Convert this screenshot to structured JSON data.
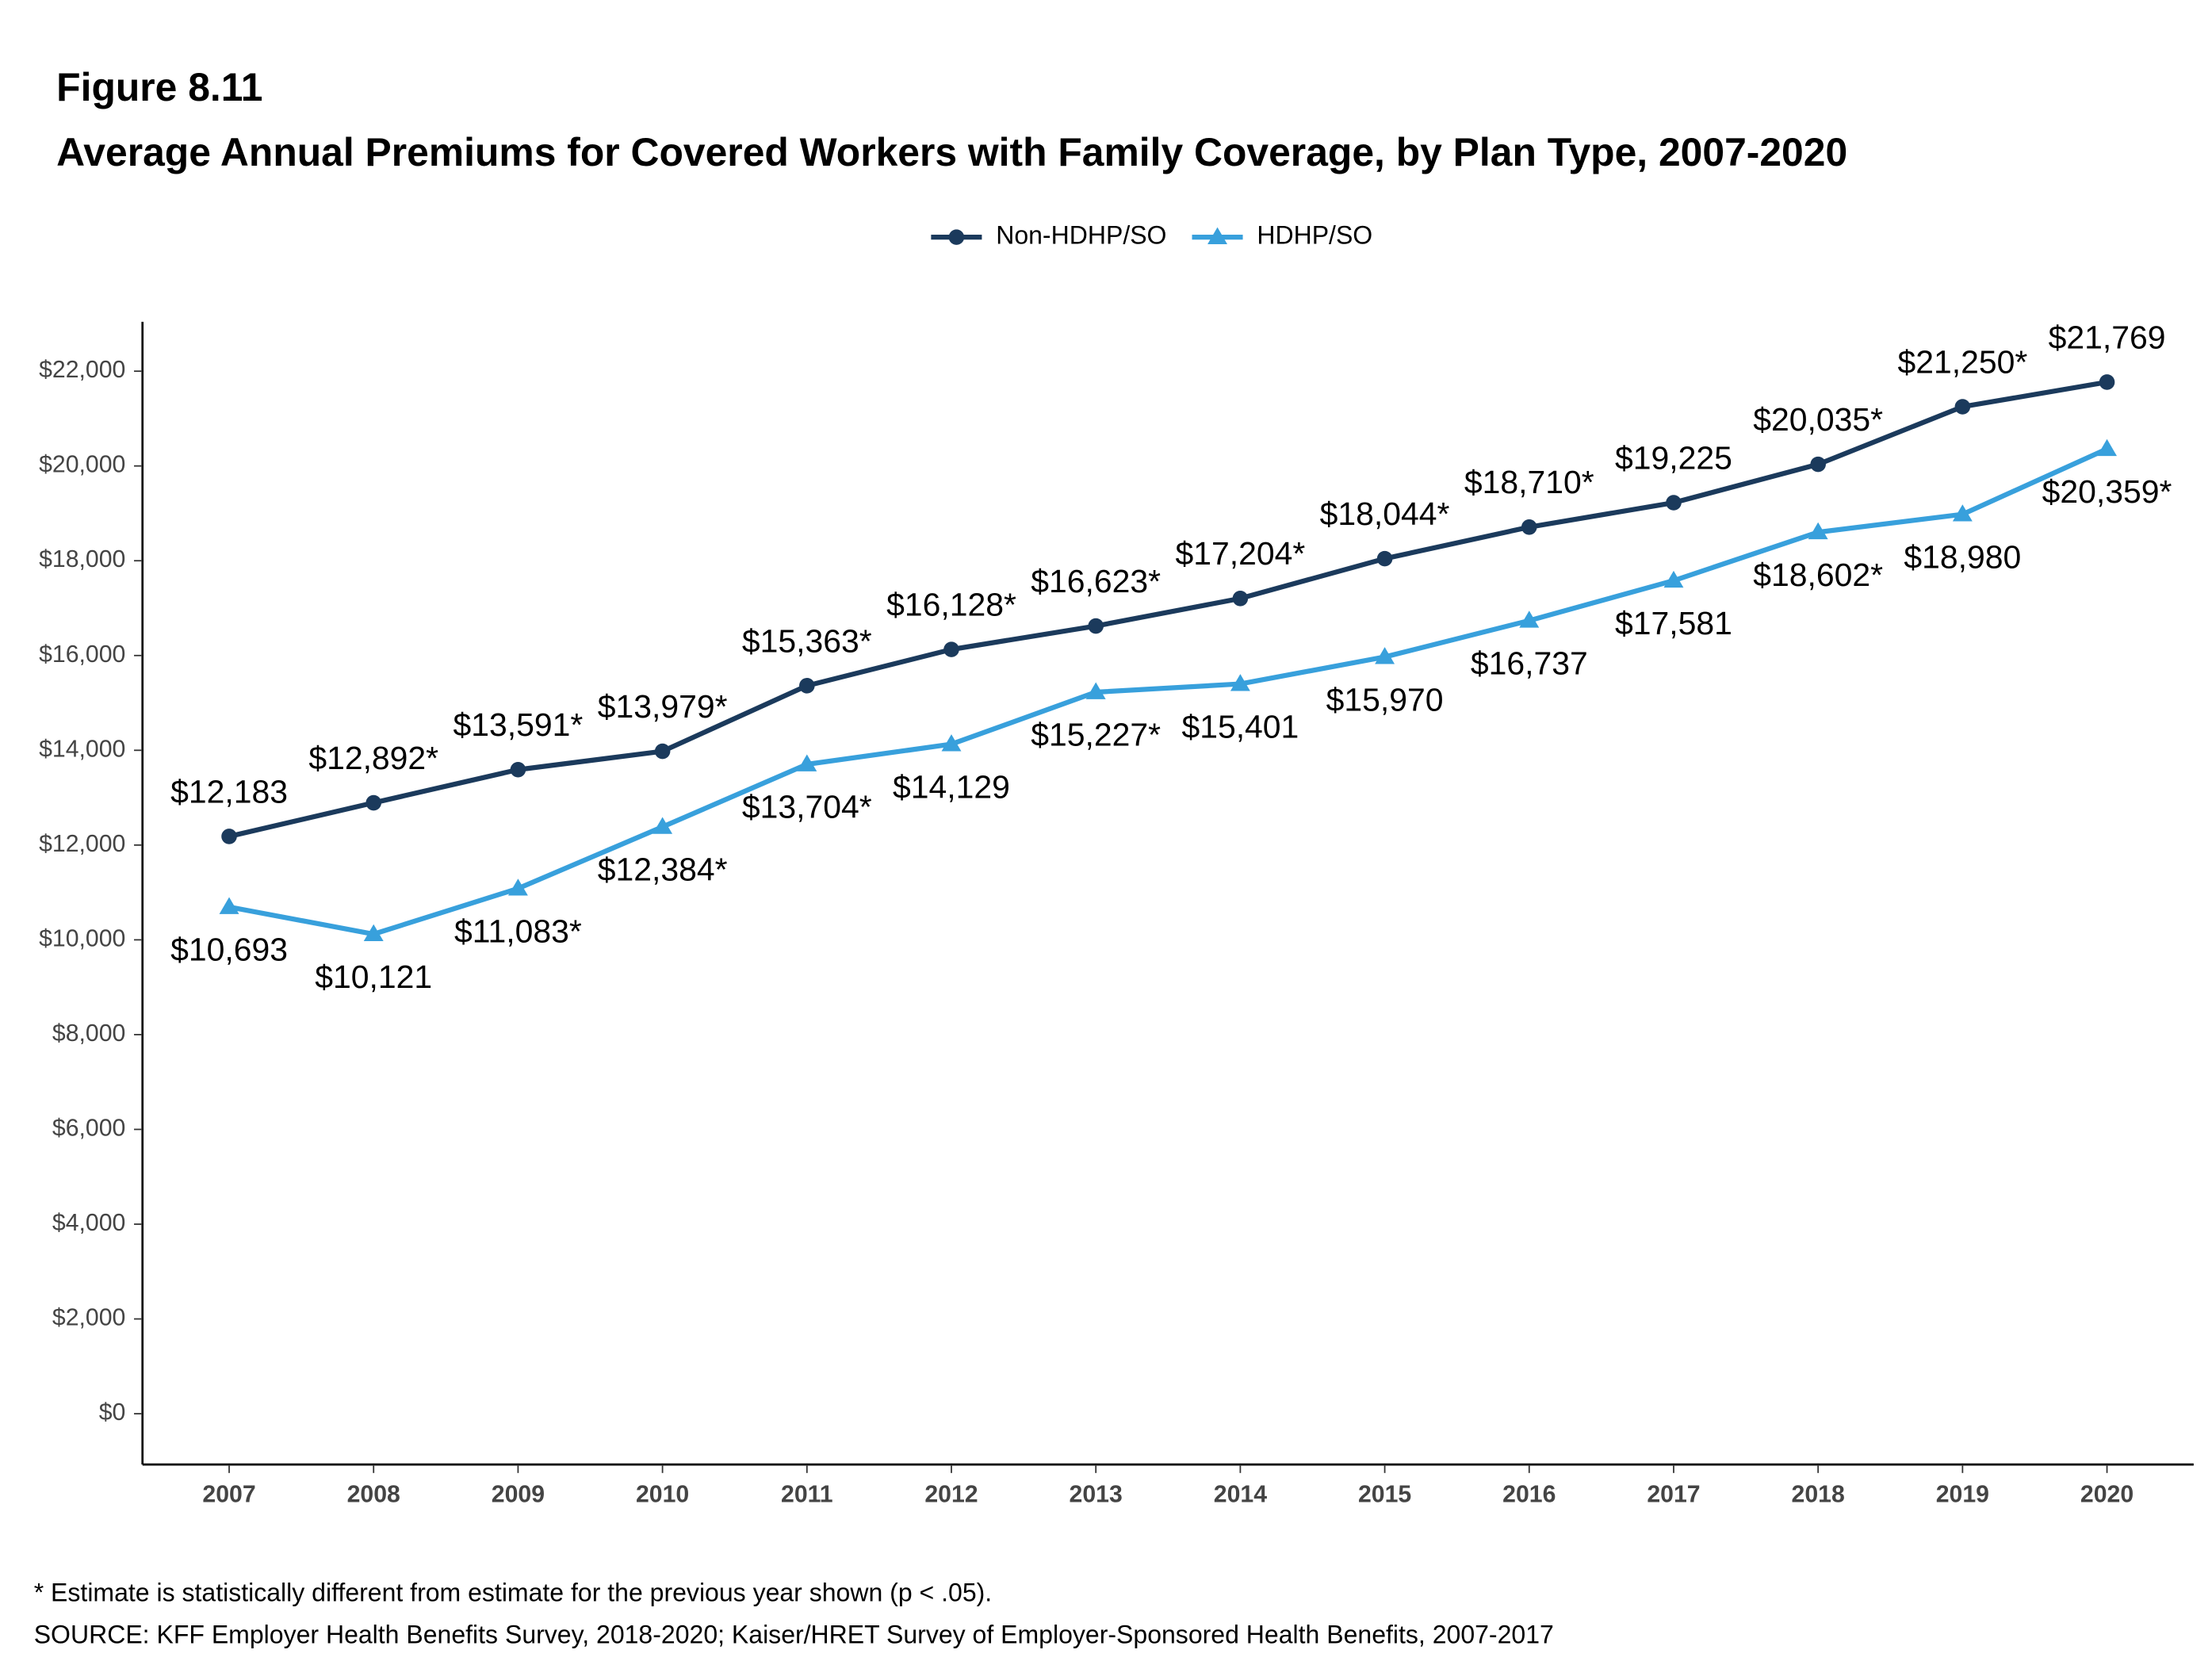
{
  "chart_data": {
    "type": "line",
    "figure_label": "Figure 8.11",
    "title": "Average Annual Premiums for Covered Workers with Family Coverage, by Plan Type, 2007-2020",
    "x": [
      2007,
      2008,
      2009,
      2010,
      2011,
      2012,
      2013,
      2014,
      2015,
      2016,
      2017,
      2018,
      2019,
      2020
    ],
    "xlim": [
      2006.4,
      2020.6
    ],
    "xticks": [
      2007,
      2008,
      2009,
      2010,
      2011,
      2012,
      2013,
      2014,
      2015,
      2016,
      2017,
      2018,
      2019,
      2020
    ],
    "ylim": [
      -1072,
      23042
    ],
    "yticks": [
      {
        "value": 0,
        "label": "$0"
      },
      {
        "value": 2000,
        "label": "$2,000"
      },
      {
        "value": 4000,
        "label": "$4,000"
      },
      {
        "value": 6000,
        "label": "$6,000"
      },
      {
        "value": 8000,
        "label": "$8,000"
      },
      {
        "value": 10000,
        "label": "$10,000"
      },
      {
        "value": 12000,
        "label": "$12,000"
      },
      {
        "value": 14000,
        "label": "$14,000"
      },
      {
        "value": 16000,
        "label": "$16,000"
      },
      {
        "value": 18000,
        "label": "$18,000"
      },
      {
        "value": 20000,
        "label": "$20,000"
      },
      {
        "value": 22000,
        "label": "$22,000"
      }
    ],
    "grid": false,
    "legend": "top",
    "series": [
      {
        "name": "Non-HDHP/SO",
        "color": "#1b3a5c",
        "marker": "circle",
        "label_side": "above",
        "values": [
          12183,
          12892,
          13591,
          13979,
          15363,
          16128,
          16623,
          17204,
          18044,
          18710,
          19225,
          20035,
          21250,
          21769
        ],
        "value_labels": [
          "$12,183",
          "$12,892*",
          "$13,591*",
          "$13,979*",
          "$15,363*",
          "$16,128*",
          "$16,623*",
          "$17,204*",
          "$18,044*",
          "$18,710*",
          "$19,225",
          "$20,035*",
          "$21,250*",
          "$21,769"
        ]
      },
      {
        "name": "HDHP/SO",
        "color": "#38a0dc",
        "marker": "triangle",
        "label_side": "below",
        "values": [
          10693,
          10121,
          11083,
          12384,
          13704,
          14129,
          15227,
          15401,
          15970,
          16737,
          17581,
          18602,
          18980,
          20359
        ],
        "value_labels": [
          "$10,693",
          "$10,121",
          "$11,083*",
          "$12,384*",
          "$13,704*",
          "$14,129",
          "$15,227*",
          "$15,401",
          "$15,970",
          "$16,737",
          "$17,581",
          "$18,602*",
          "$18,980",
          "$20,359*"
        ]
      }
    ],
    "notes": [
      "* Estimate is statistically different from estimate for the previous year shown (p < .05).",
      "SOURCE: KFF Employer Health Benefits Survey, 2018-2020; Kaiser/HRET Survey of Employer-Sponsored Health Benefits, 2007-2017"
    ]
  }
}
